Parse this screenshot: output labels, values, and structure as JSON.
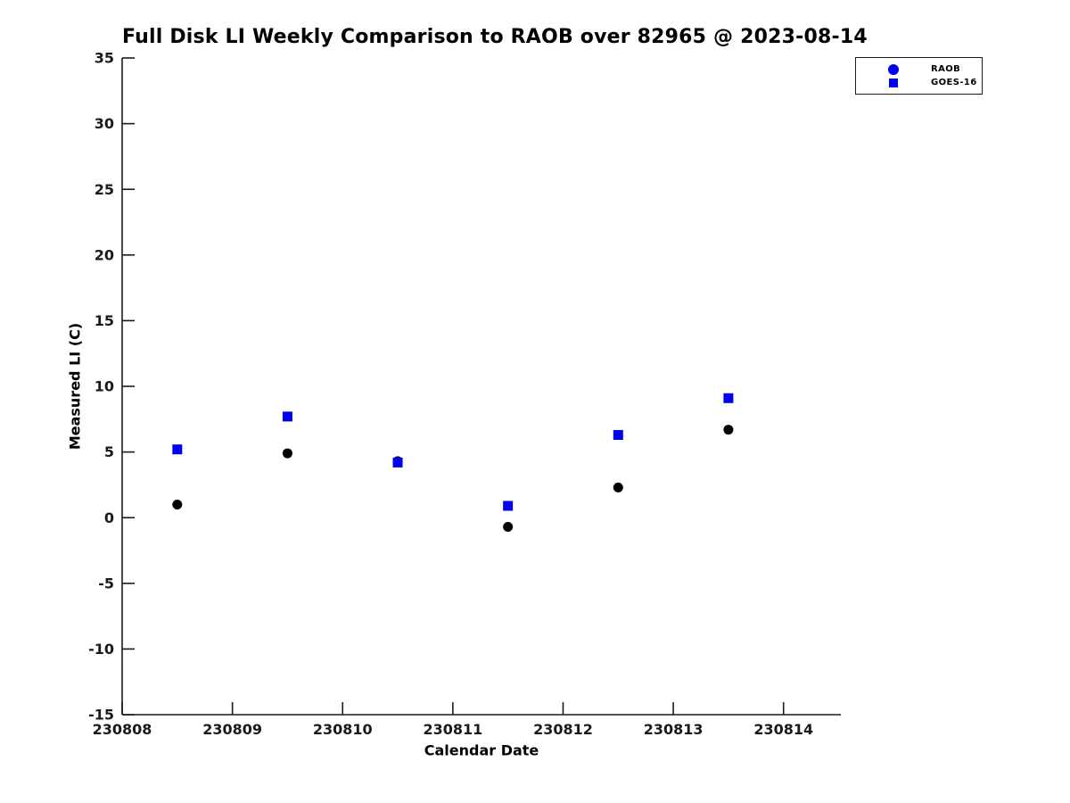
{
  "title": "Full Disk LI Weekly Comparison to RAOB over 82965 @ 2023-08-14",
  "colors": {
    "series_blue": "#0000EE",
    "series_black": "#000000",
    "axis": "#1a1a1a"
  },
  "legend": {
    "items": [
      {
        "label": "RAOB",
        "marker": "circle",
        "color": "#0000EE"
      },
      {
        "label": "GOES-16",
        "marker": "square",
        "color": "#0000EE"
      }
    ]
  },
  "chart_data": {
    "type": "scatter",
    "title": "Full Disk LI Weekly Comparison to RAOB over 82965 @ 2023-08-14",
    "xlabel": "Calendar Date",
    "ylabel": "Measured LI (C)",
    "xlim": [
      230808,
      230814.52
    ],
    "ylim": [
      -15,
      35
    ],
    "xticks": [
      230808,
      230809,
      230810,
      230811,
      230812,
      230813,
      230814
    ],
    "yticks": [
      35,
      30,
      25,
      20,
      15,
      10,
      5,
      0,
      -5,
      -10,
      -15
    ],
    "x": [
      230808.5,
      230809.5,
      230810.5,
      230811.5,
      230812.5,
      230813.5
    ],
    "series": [
      {
        "name": "RAOB",
        "marker": "circle",
        "color": "#000000",
        "values": [
          1.0,
          4.9,
          4.3,
          -0.7,
          2.3,
          6.7
        ]
      },
      {
        "name": "GOES-16",
        "marker": "square",
        "color": "#0000EE",
        "values": [
          5.2,
          7.7,
          4.2,
          0.9,
          6.3,
          9.1
        ]
      }
    ],
    "grid": false,
    "legend_position": "upper right"
  }
}
